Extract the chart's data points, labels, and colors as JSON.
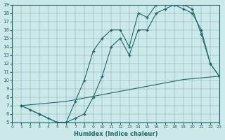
{
  "xlabel": "Humidex (Indice chaleur)",
  "ylabel": "",
  "xlim": [
    0,
    23
  ],
  "ylim": [
    5,
    19
  ],
  "xticks": [
    0,
    1,
    2,
    3,
    4,
    5,
    6,
    7,
    8,
    9,
    10,
    11,
    12,
    13,
    14,
    15,
    16,
    17,
    18,
    19,
    20,
    21,
    22,
    23
  ],
  "yticks": [
    5,
    6,
    7,
    8,
    9,
    10,
    11,
    12,
    13,
    14,
    15,
    16,
    17,
    18,
    19
  ],
  "bg_color": "#cce8e8",
  "line_color": "#1a6b6b",
  "line1_x": [
    1,
    2,
    3,
    4,
    5,
    6,
    7,
    8,
    9,
    10,
    11,
    12,
    13,
    14,
    15,
    16,
    17,
    18,
    19,
    20,
    21,
    22,
    23
  ],
  "line1_y": [
    7,
    6.5,
    6,
    5.5,
    5,
    5,
    5.5,
    6,
    8,
    10.5,
    14,
    15,
    13,
    16,
    16,
    18,
    18.5,
    19,
    19,
    18.5,
    15.5,
    12,
    10.5
  ],
  "line2_x": [
    1,
    3,
    5,
    6,
    7,
    8,
    9,
    10,
    11,
    12,
    13,
    14,
    15,
    16,
    17,
    18,
    19,
    20,
    21,
    22,
    23
  ],
  "line2_y": [
    7,
    6,
    5,
    5,
    7.5,
    10,
    13.5,
    15,
    16,
    16,
    14,
    18,
    17.5,
    19,
    19,
    19,
    18.5,
    18,
    16,
    12,
    10.5
  ],
  "line3_x": [
    1,
    2,
    3,
    4,
    5,
    6,
    7,
    8,
    9,
    10,
    11,
    12,
    13,
    14,
    15,
    16,
    17,
    18,
    19,
    20,
    21,
    22,
    23
  ],
  "line3_y": [
    7,
    7.1,
    7.2,
    7.3,
    7.4,
    7.5,
    7.7,
    7.9,
    8.1,
    8.3,
    8.5,
    8.7,
    8.9,
    9.1,
    9.3,
    9.5,
    9.7,
    9.9,
    10.1,
    10.2,
    10.3,
    10.4,
    10.5
  ]
}
